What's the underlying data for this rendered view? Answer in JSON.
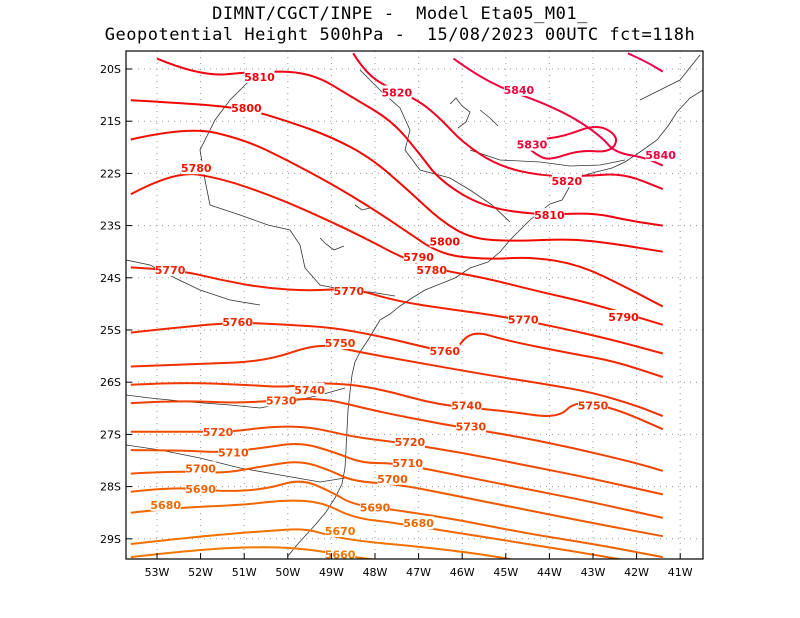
{
  "header": {
    "line1": "DIMNT/CGCT/INPE -  Model Eta05_M01_",
    "line2": "Geopotential Height 500hPa -  15/08/2023 00UTC fct=118h"
  },
  "axes": {
    "lat_labels": [
      "20S",
      "21S",
      "22S",
      "23S",
      "24S",
      "25S",
      "26S",
      "27S",
      "28S",
      "29S"
    ],
    "lon_labels": [
      "53W",
      "52W",
      "51W",
      "50W",
      "49W",
      "48W",
      "47W",
      "46W",
      "45W",
      "44W",
      "43W",
      "42W",
      "41W"
    ]
  },
  "colors": {
    "c5660": "#f07800",
    "c5670": "#f07000",
    "c5680": "#f06800",
    "c5690": "#f06000",
    "c5700": "#f05800",
    "c5710": "#f05000",
    "c5720": "#f04800",
    "c5730": "#f04000",
    "c5740": "#f03800",
    "c5750": "#f03000",
    "c5760": "#f02800",
    "c5770": "#f02000",
    "c5780": "#f01800",
    "c5790": "#f01000",
    "c5800": "#f00800",
    "c5810": "#f00010",
    "c5820": "#f00020",
    "c5830": "#f00030",
    "c5840": "#f00040",
    "c5850": "#f00050"
  },
  "contour_labels": [
    {
      "text": "5810",
      "lat": -20.15,
      "lon": -50.65
    },
    {
      "text": "5820",
      "lat": -20.45,
      "lon": -47.5
    },
    {
      "text": "5840",
      "lat": -20.4,
      "lon": -44.7
    },
    {
      "text": "5800",
      "lat": -20.75,
      "lon": -50.95
    },
    {
      "text": "5830",
      "lat": -21.45,
      "lon": -44.4
    },
    {
      "text": "5840",
      "lat": -21.65,
      "lon": -41.45
    },
    {
      "text": "5780",
      "lat": -21.9,
      "lon": -52.1
    },
    {
      "text": "5820",
      "lat": -22.15,
      "lon": -43.6
    },
    {
      "text": "5810",
      "lat": -22.8,
      "lon": -44.0
    },
    {
      "text": "5800",
      "lat": -23.3,
      "lon": -46.4
    },
    {
      "text": "5790",
      "lat": -23.6,
      "lon": -47.0
    },
    {
      "text": "5770",
      "lat": -23.85,
      "lon": -52.7
    },
    {
      "text": "5780",
      "lat": -23.85,
      "lon": -46.7
    },
    {
      "text": "5770",
      "lat": -24.25,
      "lon": -48.6
    },
    {
      "text": "5770",
      "lat": -24.8,
      "lon": -44.6
    },
    {
      "text": "5790",
      "lat": -24.75,
      "lon": -42.3
    },
    {
      "text": "5760",
      "lat": -24.85,
      "lon": -51.15
    },
    {
      "text": "5750",
      "lat": -25.25,
      "lon": -48.8
    },
    {
      "text": "5760",
      "lat": -25.4,
      "lon": -46.4
    },
    {
      "text": "5740",
      "lat": -26.15,
      "lon": -49.5
    },
    {
      "text": "5730",
      "lat": -26.35,
      "lon": -50.15
    },
    {
      "text": "5750",
      "lat": -26.45,
      "lon": -43.0
    },
    {
      "text": "5740",
      "lat": -26.45,
      "lon": -45.9
    },
    {
      "text": "5730",
      "lat": -26.85,
      "lon": -45.8
    },
    {
      "text": "5720",
      "lat": -26.95,
      "lon": -51.6
    },
    {
      "text": "5720",
      "lat": -27.15,
      "lon": -47.2
    },
    {
      "text": "5710",
      "lat": -27.35,
      "lon": -51.25
    },
    {
      "text": "5710",
      "lat": -27.55,
      "lon": -47.25
    },
    {
      "text": "5700",
      "lat": -27.65,
      "lon": -52.0
    },
    {
      "text": "5700",
      "lat": -27.85,
      "lon": -47.6
    },
    {
      "text": "5690",
      "lat": -28.05,
      "lon": -52.0
    },
    {
      "text": "5680",
      "lat": -28.35,
      "lon": -52.8
    },
    {
      "text": "5690",
      "lat": -28.4,
      "lon": -48.0
    },
    {
      "text": "5680",
      "lat": -28.7,
      "lon": -47.0
    },
    {
      "text": "5670",
      "lat": -28.85,
      "lon": -48.8
    },
    {
      "text": "5660",
      "lat": -29.3,
      "lon": -48.8
    }
  ]
}
